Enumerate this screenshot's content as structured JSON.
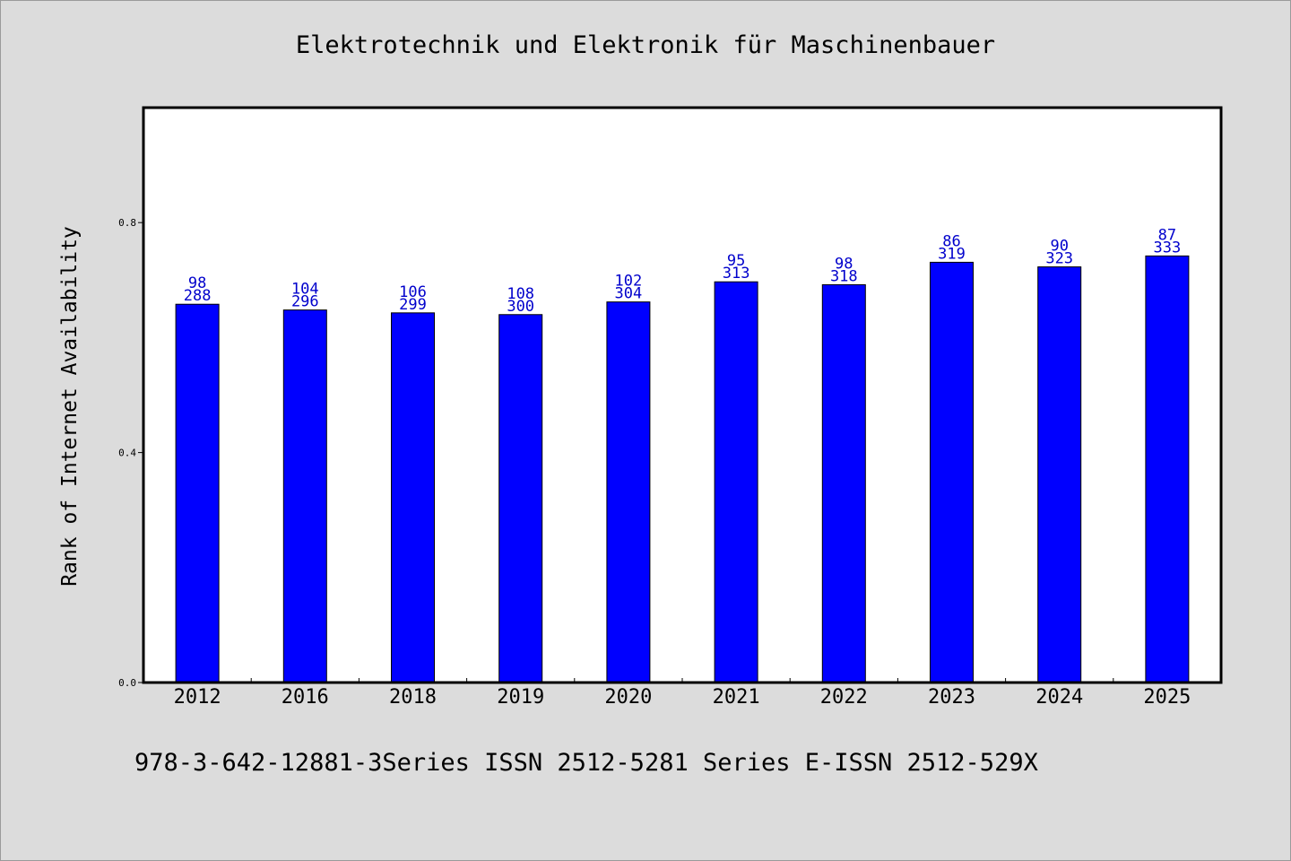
{
  "chart_data": {
    "type": "bar",
    "title": "Elektrotechnik und Elektronik für Maschinenbauer",
    "xlabel": "",
    "ylabel": "Rank of Internet Availability",
    "ylim": [
      0,
      1.0
    ],
    "yticks": [
      "0.0",
      "0.4",
      "0.8"
    ],
    "categories": [
      "2012",
      "2016",
      "2018",
      "2019",
      "2020",
      "2021",
      "2022",
      "2023",
      "2024",
      "2025"
    ],
    "values": [
      0.658,
      0.648,
      0.643,
      0.64,
      0.662,
      0.697,
      0.692,
      0.731,
      0.723,
      0.742
    ],
    "label_top": [
      "98",
      "104",
      "106",
      "108",
      "102",
      "95",
      "98",
      "86",
      "90",
      "87"
    ],
    "label_bottom": [
      "288",
      "296",
      "299",
      "300",
      "304",
      "313",
      "318",
      "319",
      "323",
      "333"
    ],
    "bar_color": "#0000ff",
    "label_color": "#0000cc",
    "grid": false,
    "legend": "none"
  },
  "footer": {
    "note": "978-3-642-12881-3Series ISSN 2512-5281 Series E-ISSN 2512-529X"
  }
}
